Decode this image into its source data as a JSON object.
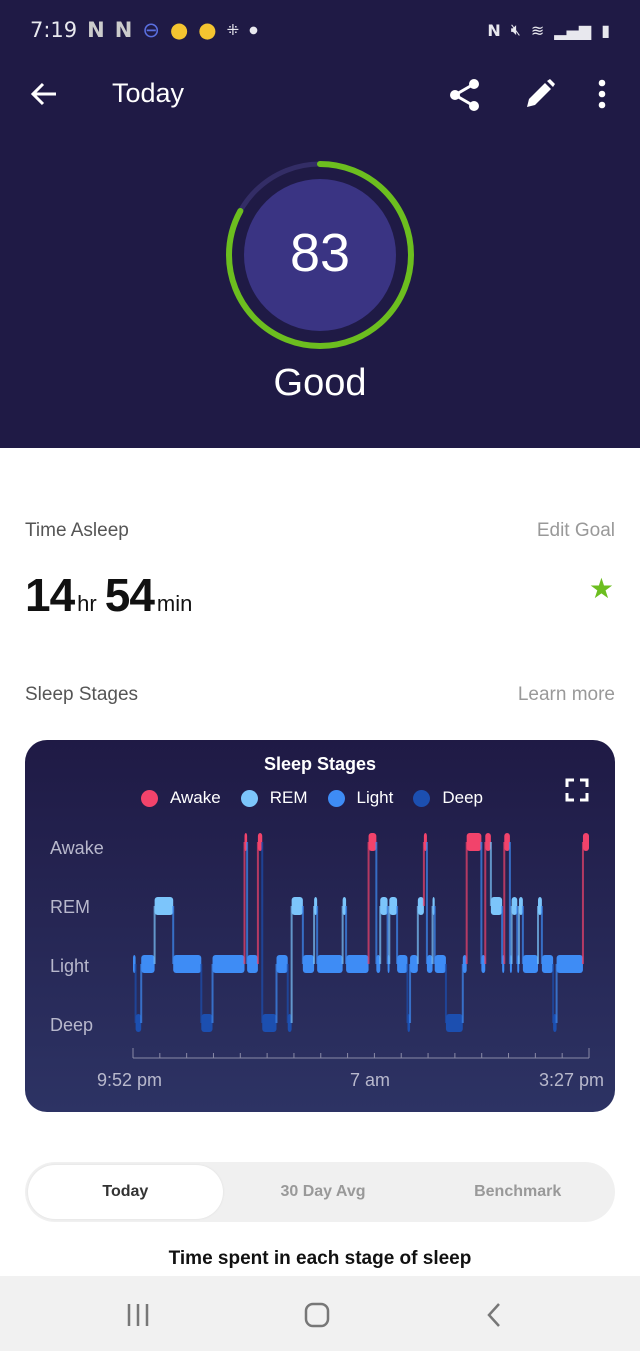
{
  "status_bar": {
    "time": "7:19",
    "icons": [
      "netflix-icon",
      "netflix-icon",
      "pokemon-go-icon",
      "app-icon",
      "app-icon",
      "fitbit-icon",
      "dot-icon",
      "nfc-icon",
      "mute-icon",
      "wifi-icon",
      "signal-icon",
      "battery-charging-icon"
    ]
  },
  "header": {
    "title": "Today",
    "score": "83",
    "score_fraction": 0.83,
    "rating": "Good",
    "ring_color": "#6cbe1f"
  },
  "time_asleep": {
    "label": "Time Asleep",
    "edit_goal": "Edit Goal",
    "hours": "14",
    "hours_unit": "hr",
    "minutes": "54",
    "minutes_unit": "min"
  },
  "sleep_stages": {
    "label": "Sleep Stages",
    "learn_more": "Learn more"
  },
  "chart_data": {
    "type": "line",
    "title": "Sleep Stages",
    "legend": [
      {
        "name": "Awake",
        "color": "#f2436b"
      },
      {
        "name": "REM",
        "color": "#7cc5fb"
      },
      {
        "name": "Light",
        "color": "#3e8cf5"
      },
      {
        "name": "Deep",
        "color": "#1c4fb0"
      }
    ],
    "y_categories": [
      "Awake",
      "REM",
      "Light",
      "Deep"
    ],
    "x_tick_labels": [
      "9:52 pm",
      "7 am",
      "3:27 pm"
    ],
    "x_range": [
      "21:52",
      "15:27"
    ],
    "segments": [
      [
        "21:52",
        "Light"
      ],
      [
        "21:58",
        "Deep"
      ],
      [
        "22:11",
        "Light"
      ],
      [
        "22:42",
        "REM"
      ],
      [
        "23:25",
        "Light"
      ],
      [
        "00:30",
        "Deep"
      ],
      [
        "00:56",
        "Light"
      ],
      [
        "02:10",
        "Awake"
      ],
      [
        "02:16",
        "Light"
      ],
      [
        "02:41",
        "Awake"
      ],
      [
        "02:51",
        "Deep"
      ],
      [
        "03:24",
        "Light"
      ],
      [
        "03:50",
        "Deep"
      ],
      [
        "03:59",
        "REM"
      ],
      [
        "04:25",
        "Light"
      ],
      [
        "04:51",
        "REM"
      ],
      [
        "04:58",
        "Light"
      ],
      [
        "05:57",
        "REM"
      ],
      [
        "06:05",
        "Light"
      ],
      [
        "06:57",
        "Awake"
      ],
      [
        "07:15",
        "Light"
      ],
      [
        "07:24",
        "REM"
      ],
      [
        "07:41",
        "Light"
      ],
      [
        "07:45",
        "REM"
      ],
      [
        "08:03",
        "Light"
      ],
      [
        "08:27",
        "Deep"
      ],
      [
        "08:33",
        "Light"
      ],
      [
        "08:51",
        "REM"
      ],
      [
        "09:05",
        "Awake"
      ],
      [
        "09:12",
        "Light"
      ],
      [
        "09:25",
        "REM"
      ],
      [
        "09:30",
        "Light"
      ],
      [
        "09:56",
        "Deep"
      ],
      [
        "10:35",
        "Light"
      ],
      [
        "10:44",
        "Awake"
      ],
      [
        "11:18",
        "Light"
      ],
      [
        "11:27",
        "Awake"
      ],
      [
        "11:40",
        "REM"
      ],
      [
        "12:06",
        "Light"
      ],
      [
        "12:11",
        "Awake"
      ],
      [
        "12:24",
        "Light"
      ],
      [
        "12:28",
        "REM"
      ],
      [
        "12:41",
        "Light"
      ],
      [
        "12:45",
        "REM"
      ],
      [
        "12:54",
        "Light"
      ],
      [
        "13:29",
        "REM"
      ],
      [
        "13:38",
        "Light"
      ],
      [
        "14:04",
        "Deep"
      ],
      [
        "14:12",
        "Light"
      ],
      [
        "15:13",
        "Awake"
      ]
    ]
  },
  "tabs": [
    "Today",
    "30 Day Avg",
    "Benchmark"
  ],
  "section_title": "Time spent in each stage of sleep"
}
